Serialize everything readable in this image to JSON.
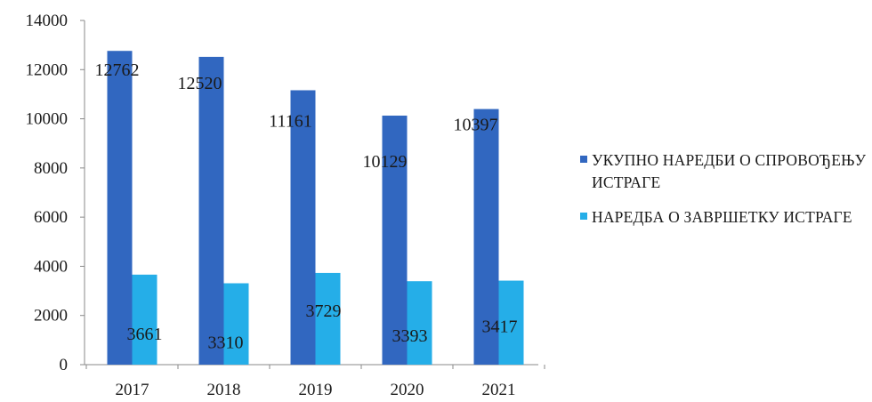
{
  "chart_data": {
    "type": "bar",
    "categories": [
      "2017",
      "2018",
      "2019",
      "2020",
      "2021"
    ],
    "series": [
      {
        "name": "УКУПНО НАРЕДБИ О СПРОВОЂЕЊУ ИСТРАГЕ",
        "values": [
          12762,
          12520,
          11161,
          10129,
          10397
        ],
        "color": "#3167c0"
      },
      {
        "name": "НАРЕДБА О ЗАВРШЕТКУ ИСТРАГЕ",
        "values": [
          3661,
          3310,
          3729,
          3393,
          3417
        ],
        "color": "#25aee8"
      }
    ],
    "y_ticks": [
      "0",
      "2000",
      "4000",
      "6000",
      "8000",
      "10000",
      "12000",
      "14000"
    ],
    "ylim": [
      0,
      14000
    ],
    "grid": false,
    "legend_position": "right",
    "data_labels": true
  }
}
